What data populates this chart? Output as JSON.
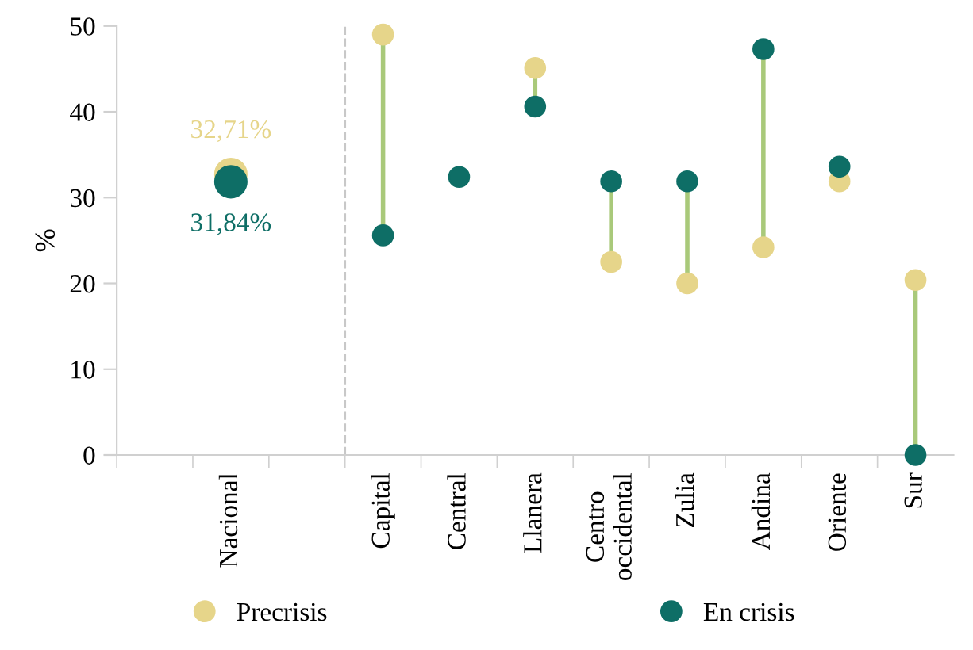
{
  "chart_data": {
    "type": "scatter",
    "ylabel": "%",
    "categories": [
      null,
      "Nacional",
      null,
      "Capital",
      "Central",
      "Llanera",
      "Centro\noccidental",
      "Zulia",
      "Andina",
      "Oriente",
      "Sur"
    ],
    "series": [
      {
        "name": "Precrisis",
        "color": "#e6d58a",
        "values": [
          null,
          32.71,
          null,
          49.0,
          null,
          45.1,
          22.5,
          20.0,
          24.2,
          31.9,
          20.4
        ],
        "sizes": [
          null,
          1,
          null,
          0.4,
          null,
          0.4,
          0.4,
          0.4,
          0.4,
          0.4,
          0.4
        ],
        "value_labels": [
          null,
          "32,71%",
          null,
          null,
          null,
          null,
          null,
          null,
          null,
          null,
          null
        ]
      },
      {
        "name": "En crisis",
        "color": "#0e6e66",
        "values": [
          null,
          31.84,
          null,
          25.6,
          32.4,
          40.6,
          31.9,
          31.9,
          47.3,
          33.6,
          0.0
        ],
        "sizes": [
          null,
          1,
          null,
          0.4,
          0.4,
          0.4,
          0.4,
          0.4,
          0.4,
          0.4,
          0.4
        ],
        "value_labels": [
          null,
          "31,84%",
          null,
          null,
          null,
          null,
          null,
          null,
          null,
          null,
          null
        ]
      }
    ],
    "ylim": [
      0,
      50
    ],
    "yticks": [
      0,
      10,
      20,
      30,
      40,
      50
    ],
    "grid": false,
    "legend": "bottom",
    "marker": "circle"
  }
}
